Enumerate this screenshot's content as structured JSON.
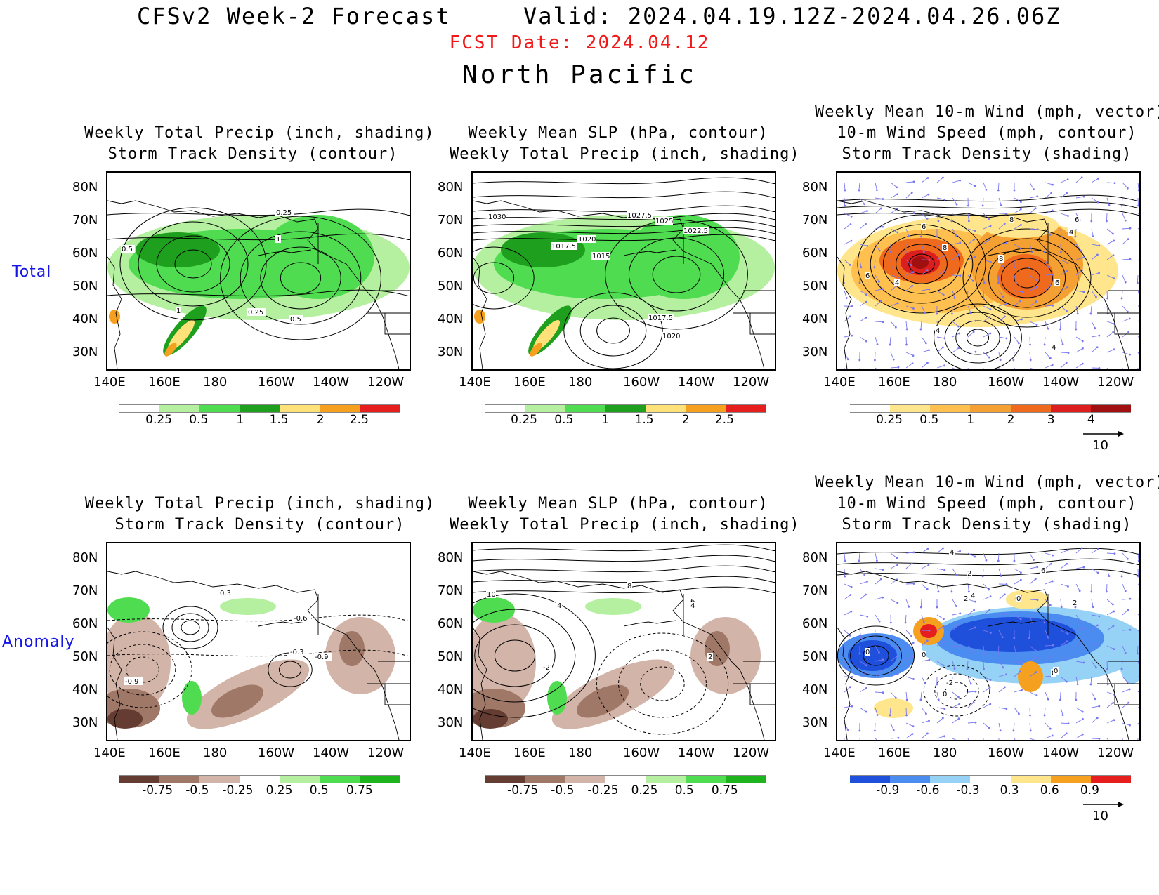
{
  "header": {
    "title": "CFSv2 Week-2 Forecast",
    "valid": "Valid: 2024.04.19.12Z-2024.04.26.06Z",
    "fcst_date": "FCST Date: 2024.04.12",
    "region": "North Pacific"
  },
  "rows": {
    "total": "Total",
    "anomaly": "Anomaly"
  },
  "titles": {
    "precip_track": [
      "Weekly Total Precip (inch, shading)",
      "Storm Track Density (contour)"
    ],
    "slp_precip": [
      "Weekly Mean SLP (hPa, contour)",
      "Weekly Total Precip (inch, shading)"
    ],
    "wind_track": [
      "Weekly Mean 10-m Wind (mph, vector)",
      "10-m Wind Speed (mph, contour)",
      "Storm Track Density (shading)"
    ]
  },
  "axes": {
    "lat_labels": [
      "80N",
      "70N",
      "60N",
      "50N",
      "40N",
      "30N"
    ],
    "lon_labels": [
      "140E",
      "160E",
      "180",
      "160W",
      "140W",
      "120W"
    ]
  },
  "colorbars": {
    "precip_total": {
      "labels": [
        "0.25",
        "0.5",
        "1",
        "1.5",
        "2",
        "2.5"
      ],
      "colors": [
        "#ffffff",
        "#b4f0a0",
        "#50dc50",
        "#1ea01e",
        "#ffe17a",
        "#f5a01e",
        "#e61e1e"
      ]
    },
    "track_total": {
      "labels": [
        "0.25",
        "0.5",
        "1",
        "2",
        "3",
        "4"
      ],
      "colors": [
        "#ffffff",
        "#ffe68c",
        "#ffc050",
        "#f5a032",
        "#f06a1e",
        "#dc1e1e",
        "#a01010"
      ]
    },
    "precip_anom": {
      "labels": [
        "-0.75",
        "-0.5",
        "-0.25",
        "0.25",
        "0.5",
        "0.75"
      ],
      "colors": [
        "#643c32",
        "#a07868",
        "#d2b4a8",
        "#ffffff",
        "#b4f0a0",
        "#50dc50",
        "#1eb41e"
      ]
    },
    "track_anom": {
      "labels": [
        "-0.9",
        "-0.6",
        "-0.3",
        "0.3",
        "0.6",
        "0.9"
      ],
      "colors": [
        "#1e50dc",
        "#4b8cf0",
        "#96d2f5",
        "#ffffff",
        "#ffe68c",
        "#f5a01e",
        "#e61e1e"
      ]
    }
  },
  "vector_ref": "10",
  "contour_labels": {
    "p1": [
      "0.25",
      "1",
      "0.5",
      "1",
      "0.25",
      "0.5"
    ],
    "p2": [
      "1030",
      "1027.5",
      "1025",
      "1022.5",
      "1020",
      "1017.5",
      "1015",
      "1017.5",
      "1020"
    ],
    "p3": [
      "6",
      "8",
      "6",
      "4",
      "8",
      "4",
      "8",
      "6",
      "4",
      "6",
      "4"
    ],
    "p4": [
      "0.3",
      "-0.6",
      "-0.3",
      "-0.9",
      "-0.9"
    ],
    "p5": [
      "10",
      "8",
      "4",
      "6",
      "4",
      "-2",
      "2"
    ],
    "p6": [
      "4",
      "2",
      "6",
      "2",
      "4",
      "0",
      "2",
      "0",
      "0",
      "0",
      "-2",
      "0",
      "0"
    ]
  },
  "colors": {
    "title": "#000000",
    "fcst_date": "#f01818",
    "row_label": "#1515e8",
    "wind_vector": "#7878f0"
  }
}
